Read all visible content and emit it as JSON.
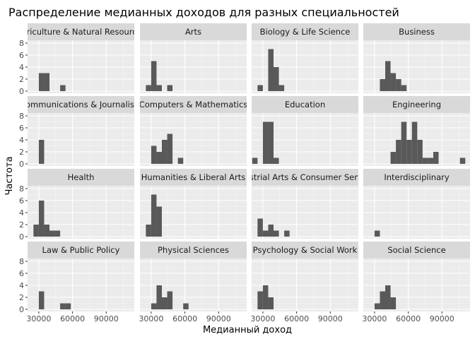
{
  "chart_data": {
    "type": "bar",
    "title": "Распределение медианных доходов для разных специальностей",
    "xlabel": "Медианный доход",
    "ylabel": "Частота",
    "xlim": [
      20000,
      115000
    ],
    "ylim": [
      0,
      8
    ],
    "xticks": [
      30000,
      60000,
      90000
    ],
    "yticks": [
      0,
      2,
      4,
      6,
      8
    ],
    "bin_width": 4750,
    "grid": true,
    "facets": [
      {
        "name": "Agriculture & Natural Resources",
        "bars": [
          {
            "x": 32375,
            "y": 3
          },
          {
            "x": 37125,
            "y": 3
          },
          {
            "x": 51375,
            "y": 1
          }
        ]
      },
      {
        "name": "Arts",
        "bars": [
          {
            "x": 27625,
            "y": 1
          },
          {
            "x": 32375,
            "y": 5
          },
          {
            "x": 37125,
            "y": 1
          },
          {
            "x": 46625,
            "y": 1
          }
        ]
      },
      {
        "name": "Biology & Life Science",
        "bars": [
          {
            "x": 27625,
            "y": 1
          },
          {
            "x": 37125,
            "y": 7
          },
          {
            "x": 41875,
            "y": 4
          },
          {
            "x": 46625,
            "y": 1
          }
        ]
      },
      {
        "name": "Business",
        "bars": [
          {
            "x": 37125,
            "y": 2
          },
          {
            "x": 41875,
            "y": 5
          },
          {
            "x": 46625,
            "y": 3
          },
          {
            "x": 51375,
            "y": 2
          },
          {
            "x": 56125,
            "y": 1
          }
        ]
      },
      {
        "name": "Communications & Journalism",
        "bars": [
          {
            "x": 32375,
            "y": 4
          }
        ]
      },
      {
        "name": "Computers & Mathematics",
        "bars": [
          {
            "x": 32375,
            "y": 3
          },
          {
            "x": 37125,
            "y": 2
          },
          {
            "x": 41875,
            "y": 4
          },
          {
            "x": 46625,
            "y": 5
          },
          {
            "x": 56125,
            "y": 1
          }
        ]
      },
      {
        "name": "Education",
        "bars": [
          {
            "x": 22875,
            "y": 1
          },
          {
            "x": 32375,
            "y": 7
          },
          {
            "x": 37125,
            "y": 7
          },
          {
            "x": 41875,
            "y": 1
          }
        ]
      },
      {
        "name": "Engineering",
        "bars": [
          {
            "x": 46625,
            "y": 2
          },
          {
            "x": 51375,
            "y": 4
          },
          {
            "x": 56125,
            "y": 7
          },
          {
            "x": 60875,
            "y": 4
          },
          {
            "x": 65625,
            "y": 7
          },
          {
            "x": 70375,
            "y": 4
          },
          {
            "x": 75125,
            "y": 1
          },
          {
            "x": 79875,
            "y": 1
          },
          {
            "x": 84625,
            "y": 2
          },
          {
            "x": 108375,
            "y": 1
          }
        ]
      },
      {
        "name": "Health",
        "bars": [
          {
            "x": 27625,
            "y": 2
          },
          {
            "x": 32375,
            "y": 6
          },
          {
            "x": 37125,
            "y": 2
          },
          {
            "x": 41875,
            "y": 1
          },
          {
            "x": 46625,
            "y": 1
          }
        ]
      },
      {
        "name": "Humanities & Liberal Arts",
        "bars": [
          {
            "x": 27625,
            "y": 2
          },
          {
            "x": 32375,
            "y": 7
          },
          {
            "x": 37125,
            "y": 5
          }
        ]
      },
      {
        "name": "Industrial Arts & Consumer Services",
        "bars": [
          {
            "x": 27625,
            "y": 3
          },
          {
            "x": 32375,
            "y": 1
          },
          {
            "x": 37125,
            "y": 2
          },
          {
            "x": 41875,
            "y": 1
          },
          {
            "x": 51375,
            "y": 1
          }
        ]
      },
      {
        "name": "Interdisciplinary",
        "bars": [
          {
            "x": 32375,
            "y": 1
          }
        ]
      },
      {
        "name": "Law & Public Policy",
        "bars": [
          {
            "x": 32375,
            "y": 3
          },
          {
            "x": 51375,
            "y": 1
          },
          {
            "x": 56125,
            "y": 1
          }
        ]
      },
      {
        "name": "Physical Sciences",
        "bars": [
          {
            "x": 32375,
            "y": 1
          },
          {
            "x": 37125,
            "y": 4
          },
          {
            "x": 41875,
            "y": 2
          },
          {
            "x": 46625,
            "y": 3
          },
          {
            "x": 60875,
            "y": 1
          }
        ]
      },
      {
        "name": "Psychology & Social Work",
        "bars": [
          {
            "x": 27625,
            "y": 3
          },
          {
            "x": 32375,
            "y": 4
          },
          {
            "x": 37125,
            "y": 2
          }
        ]
      },
      {
        "name": "Social Science",
        "bars": [
          {
            "x": 32375,
            "y": 1
          },
          {
            "x": 37125,
            "y": 3
          },
          {
            "x": 41875,
            "y": 4
          },
          {
            "x": 46625,
            "y": 2
          }
        ]
      }
    ],
    "colors": {
      "panel_background": "#ebebeb",
      "strip_background": "#d9d9d9",
      "grid_major": "#ffffff",
      "grid_minor": "#f5f5f5",
      "bar_fill": "#595959",
      "tick_text": "#4d4d4d"
    }
  }
}
